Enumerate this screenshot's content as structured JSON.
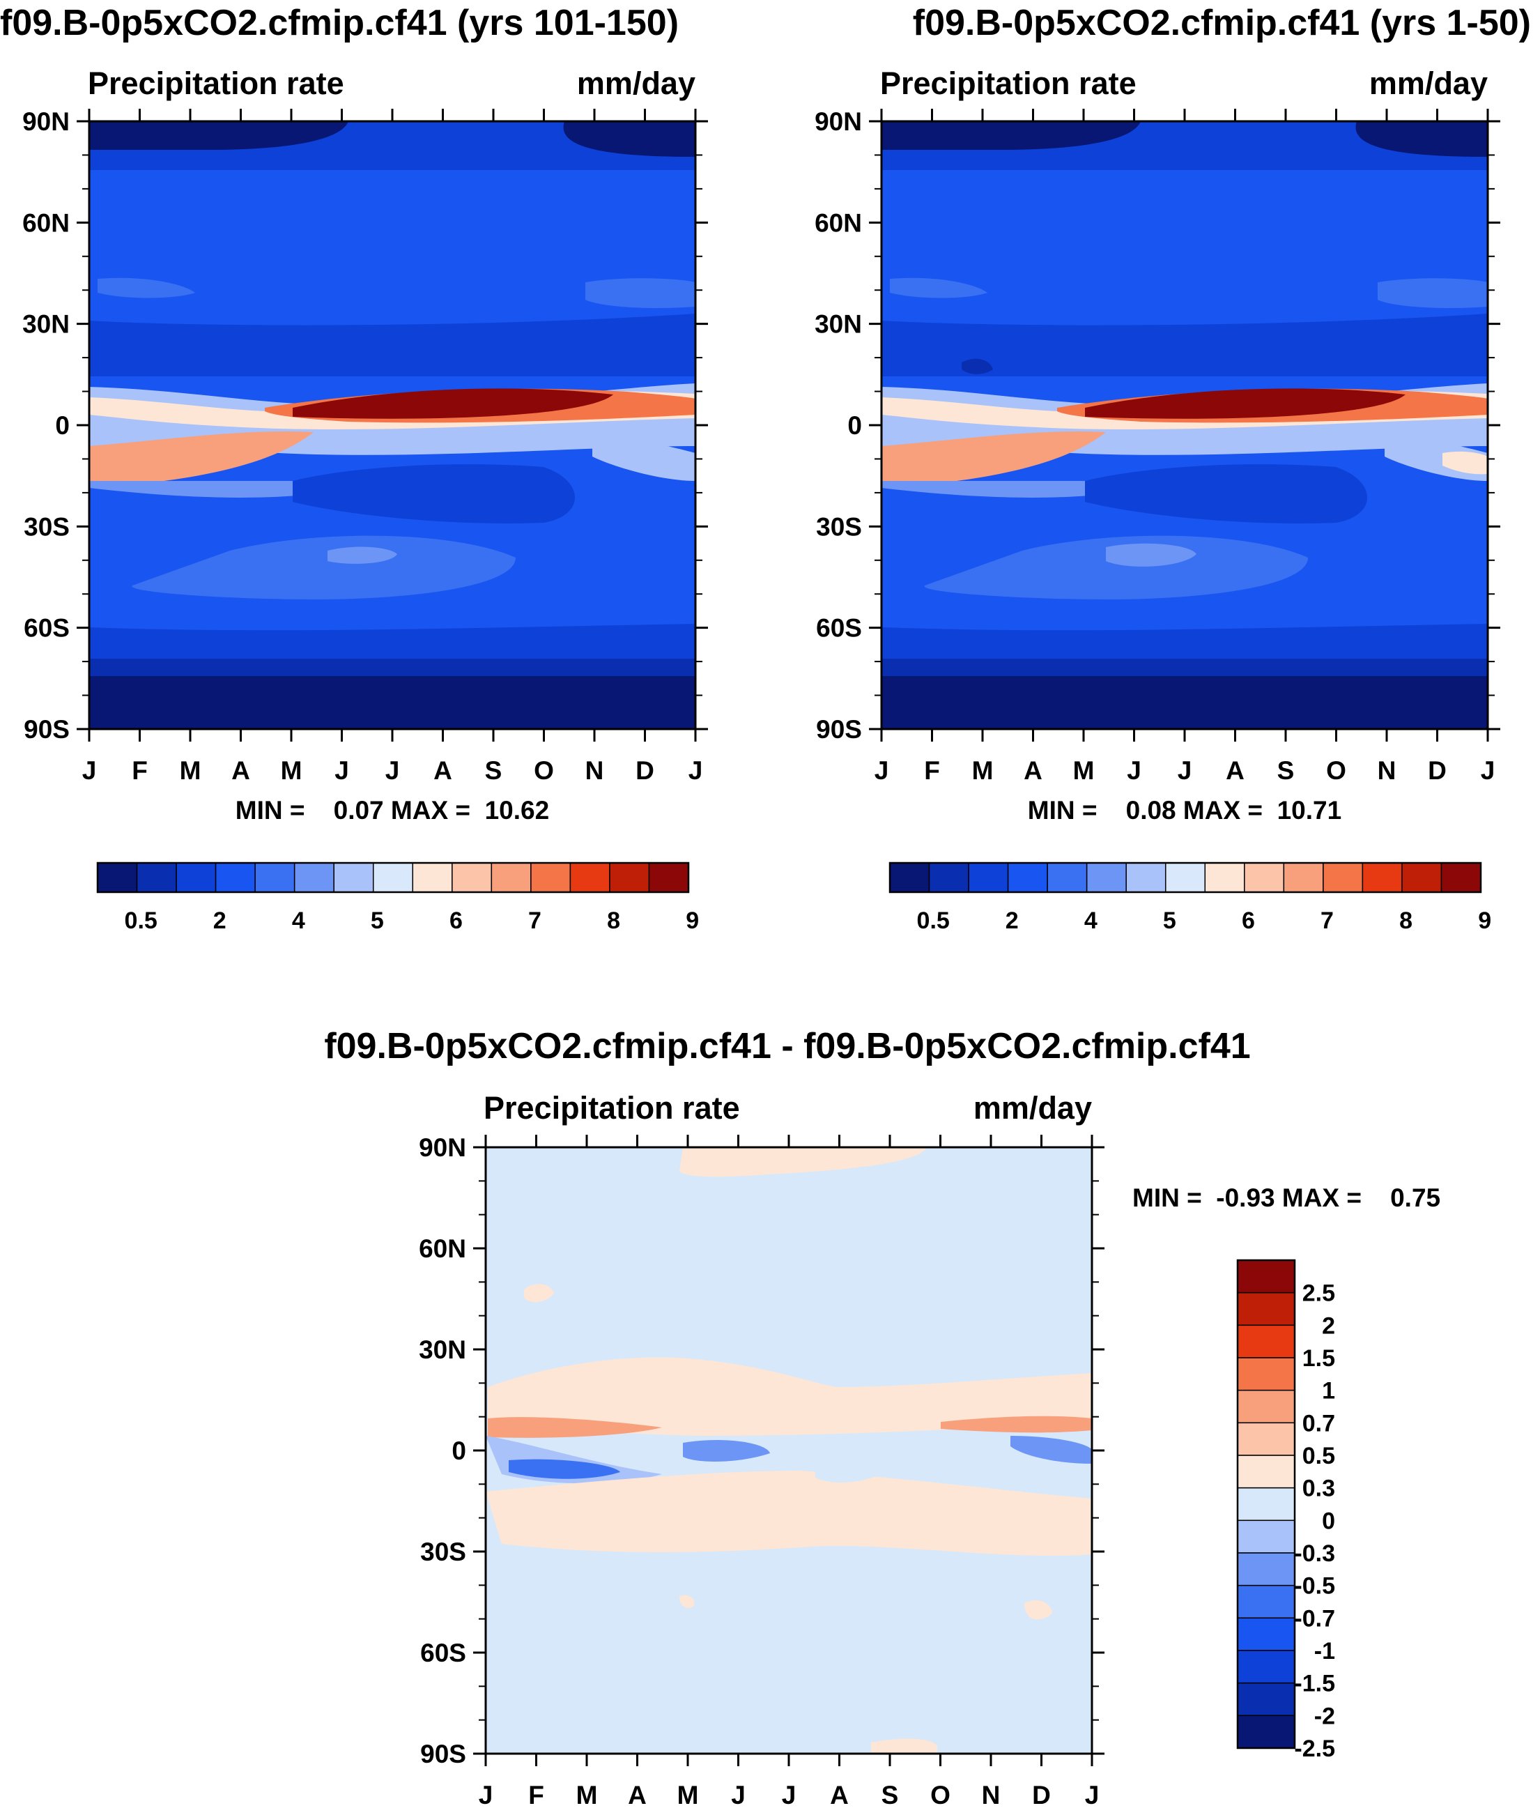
{
  "colors": {
    "abs_scale": [
      "#081674",
      "#0a2eb0",
      "#0d41d8",
      "#1955f0",
      "#3a71f2",
      "#6c95f6",
      "#a9c2f9",
      "#dae8fb",
      "#fde6d6",
      "#fcc4a9",
      "#f8a07c",
      "#f47547",
      "#e83a12",
      "#c01f07",
      "#8c0707"
    ],
    "diff_scale": [
      "#081674",
      "#0a2eb0",
      "#0d41d8",
      "#1955f0",
      "#3a71f2",
      "#6c95f6",
      "#a9c2f9",
      "#d7e8fb",
      "#fde6d6",
      "#fcc4a9",
      "#f8a07c",
      "#f47547",
      "#e83a12",
      "#c01f07",
      "#8c0707"
    ]
  },
  "panels": [
    {
      "title": "f09.B-0p5xCO2.cfmip.cf41 (yrs 101-150)",
      "variable": "Precipitation rate",
      "units": "mm/day",
      "min_max": "MIN =    0.07 MAX =  10.62"
    },
    {
      "title": "f09.B-0p5xCO2.cfmip.cf41 (yrs 1-50)",
      "variable": "Precipitation rate",
      "units": "mm/day",
      "min_max": "MIN =    0.08 MAX =  10.71"
    },
    {
      "title": "f09.B-0p5xCO2.cfmip.cf41 - f09.B-0p5xCO2.cfmip.cf41",
      "variable": "Precipitation rate",
      "units": "mm/day",
      "min_max": "MIN =  -0.93 MAX =    0.75"
    }
  ],
  "chart_data": [
    {
      "type": "heatmap",
      "title": "f09.B-0p5xCO2.cfmip.cf41 (yrs 101-150)",
      "xlabel": "month",
      "ylabel": "latitude",
      "x_ticks": [
        "J",
        "F",
        "M",
        "A",
        "M",
        "J",
        "J",
        "A",
        "S",
        "O",
        "N",
        "D",
        "J"
      ],
      "y_ticks": [
        "90N",
        "60N",
        "30N",
        "0",
        "30S",
        "60S",
        "90S"
      ],
      "y_range": [
        -90,
        90
      ],
      "levels": [
        0.2,
        0.5,
        1,
        2,
        3,
        4,
        5,
        6,
        6.5,
        7,
        7.5,
        8,
        8.5,
        9
      ],
      "colorbar_labels": [
        "0.5",
        "2",
        "4",
        "5",
        "6",
        "7",
        "8",
        "9"
      ],
      "min": 0.07,
      "max": 10.62,
      "units": "mm/day"
    },
    {
      "type": "heatmap",
      "title": "f09.B-0p5xCO2.cfmip.cf41 (yrs 1-50)",
      "xlabel": "month",
      "ylabel": "latitude",
      "x_ticks": [
        "J",
        "F",
        "M",
        "A",
        "M",
        "J",
        "J",
        "A",
        "S",
        "O",
        "N",
        "D",
        "J"
      ],
      "y_ticks": [
        "90N",
        "60N",
        "30N",
        "0",
        "30S",
        "60S",
        "90S"
      ],
      "y_range": [
        -90,
        90
      ],
      "levels": [
        0.2,
        0.5,
        1,
        2,
        3,
        4,
        5,
        6,
        6.5,
        7,
        7.5,
        8,
        8.5,
        9
      ],
      "colorbar_labels": [
        "0.5",
        "2",
        "4",
        "5",
        "6",
        "7",
        "8",
        "9"
      ],
      "min": 0.08,
      "max": 10.71,
      "units": "mm/day"
    },
    {
      "type": "heatmap",
      "title": "f09.B-0p5xCO2.cfmip.cf41 - f09.B-0p5xCO2.cfmip.cf41",
      "xlabel": "month",
      "ylabel": "latitude",
      "x_ticks": [
        "J",
        "F",
        "M",
        "A",
        "M",
        "J",
        "J",
        "A",
        "S",
        "O",
        "N",
        "D",
        "J"
      ],
      "y_ticks": [
        "90N",
        "60N",
        "30N",
        "0",
        "30S",
        "60S",
        "90S"
      ],
      "y_range": [
        -90,
        90
      ],
      "levels": [
        -2.5,
        -2,
        -1.5,
        -1,
        -0.7,
        -0.5,
        -0.3,
        0,
        0.3,
        0.5,
        0.7,
        1,
        1.5,
        2,
        2.5
      ],
      "colorbar_labels": [
        "2.5",
        "2",
        "1.5",
        "1",
        "0.7",
        "0.5",
        "0.3",
        "0",
        "-0.3",
        "-0.5",
        "-0.7",
        "-1",
        "-1.5",
        "-2",
        "-2.5"
      ],
      "min": -0.93,
      "max": 0.75,
      "units": "mm/day"
    }
  ]
}
